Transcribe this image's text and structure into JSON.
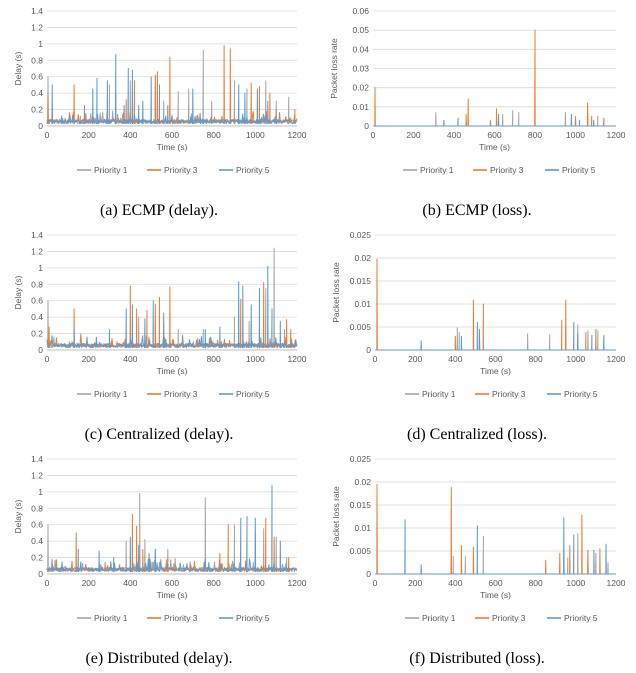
{
  "captions": [
    "(a) ECMP (delay).",
    "(b) ECMP (loss).",
    "(c) Centralized (delay).",
    "(d) Centralized (loss).",
    "(e) Distributed (delay).",
    "(f) Distributed (loss)."
  ],
  "colors": {
    "priority1": "#A5A5A5",
    "priority3": "#ED7D31",
    "priority5": "#5B9BD5",
    "grid": "#D9D9D9",
    "axis": "#BFBFBF"
  },
  "chart_data": [
    {
      "type": "line",
      "xlabel": "Time (s)",
      "ylabel": "Delay (s)",
      "xlim": [
        0,
        1200
      ],
      "ylim": [
        0,
        1.4
      ],
      "xticks": [
        "0",
        "200",
        "400",
        "600",
        "800",
        "1000",
        "1200"
      ],
      "yticks": [
        "0",
        "0.2",
        "0.4",
        "0.6",
        "0.8",
        "1",
        "1.2",
        "1.4"
      ],
      "grid": true,
      "legend": "bottom",
      "series": [
        {
          "name": "Priority 1",
          "color": "#A5A5A5",
          "spikes": [
            [
              5,
              0.6
            ],
            [
              160,
              0.12
            ],
            [
              300,
              0.5
            ],
            [
              330,
              0.4
            ],
            [
              400,
              0.55
            ],
            [
              520,
              0.48
            ],
            [
              560,
              0.3
            ],
            [
              630,
              0.42
            ],
            [
              680,
              0.45
            ],
            [
              750,
              0.92
            ],
            [
              790,
              0.3
            ],
            [
              900,
              0.55
            ],
            [
              960,
              0.45
            ],
            [
              1050,
              0.55
            ],
            [
              1100,
              0.3
            ],
            [
              1160,
              0.35
            ]
          ]
        },
        {
          "name": "Priority 3",
          "color": "#ED7D31",
          "spikes": [
            [
              5,
              0.38
            ],
            [
              130,
              0.5
            ],
            [
              380,
              0.32
            ],
            [
              420,
              0.55
            ],
            [
              520,
              0.62
            ],
            [
              530,
              0.66
            ],
            [
              590,
              0.84
            ],
            [
              850,
              0.98
            ],
            [
              880,
              0.94
            ],
            [
              980,
              0.52
            ],
            [
              1020,
              0.48
            ],
            [
              1070,
              0.4
            ],
            [
              1190,
              0.2
            ]
          ]
        },
        {
          "name": "Priority 5",
          "color": "#5B9BD5",
          "spikes": [
            [
              25,
              0.5
            ],
            [
              70,
              0.12
            ],
            [
              180,
              0.25
            ],
            [
              220,
              0.45
            ],
            [
              240,
              0.58
            ],
            [
              290,
              0.55
            ],
            [
              330,
              0.87
            ],
            [
              370,
              0.25
            ],
            [
              390,
              0.7
            ],
            [
              410,
              0.68
            ],
            [
              440,
              0.25
            ],
            [
              460,
              0.3
            ],
            [
              500,
              0.6
            ],
            [
              540,
              0.5
            ],
            [
              580,
              0.25
            ],
            [
              700,
              0.45
            ],
            [
              920,
              0.5
            ],
            [
              950,
              0.4
            ],
            [
              1010,
              0.45
            ],
            [
              1060,
              0.3
            ],
            [
              1100,
              0.2
            ]
          ]
        }
      ]
    },
    {
      "type": "line",
      "xlabel": "Time (s)",
      "ylabel": "Packet loss rate",
      "xlim": [
        0,
        1200
      ],
      "ylim": [
        0,
        0.06
      ],
      "xticks": [
        "0",
        "200",
        "400",
        "600",
        "800",
        "1000",
        "1200"
      ],
      "yticks": [
        "0",
        "0.01",
        "0.02",
        "0.03",
        "0.04",
        "0.05",
        "0.06"
      ],
      "grid": true,
      "legend": "bottom",
      "series": [
        {
          "name": "Priority 1",
          "color": "#A5A5A5",
          "spikes": [
            [
              310,
              0.007
            ],
            [
              640,
              0.006
            ],
            [
              690,
              0.008
            ],
            [
              720,
              0.007
            ],
            [
              950,
              0.007
            ],
            [
              1000,
              0.005
            ],
            [
              1110,
              0.005
            ],
            [
              1140,
              0.003
            ]
          ]
        },
        {
          "name": "Priority 3",
          "color": "#ED7D31",
          "spikes": [
            [
              10,
              0.02
            ],
            [
              460,
              0.006
            ],
            [
              470,
              0.014
            ],
            [
              580,
              0.003
            ],
            [
              610,
              0.009
            ],
            [
              800,
              0.05
            ],
            [
              1000,
              0.004
            ],
            [
              1060,
              0.012
            ],
            [
              1080,
              0.005
            ],
            [
              1140,
              0.004
            ]
          ]
        },
        {
          "name": "Priority 5",
          "color": "#5B9BD5",
          "spikes": [
            [
              350,
              0.003
            ],
            [
              420,
              0.004
            ],
            [
              620,
              0.006
            ],
            [
              980,
              0.006
            ],
            [
              1020,
              0.003
            ],
            [
              1090,
              0.003
            ]
          ]
        }
      ]
    },
    {
      "type": "line",
      "xlabel": "Time (s)",
      "ylabel": "Delay (s)",
      "xlim": [
        0,
        1200
      ],
      "ylim": [
        0,
        1.4
      ],
      "xticks": [
        "0",
        "200",
        "400",
        "600",
        "800",
        "1000",
        "1200"
      ],
      "yticks": [
        "0",
        "0.2",
        "0.4",
        "0.6",
        "0.8",
        "1",
        "1.2",
        "1.4"
      ],
      "grid": true,
      "legend": "bottom",
      "series": [
        {
          "name": "Priority 1",
          "color": "#A5A5A5",
          "spikes": [
            [
              5,
              0.6
            ],
            [
              440,
              0.4
            ],
            [
              520,
              0.35
            ],
            [
              560,
              0.3
            ],
            [
              630,
              0.25
            ],
            [
              750,
              0.25
            ],
            [
              900,
              0.4
            ],
            [
              970,
              0.35
            ],
            [
              1050,
              0.75
            ],
            [
              1090,
              1.24
            ],
            [
              1140,
              0.25
            ]
          ]
        },
        {
          "name": "Priority 3",
          "color": "#ED7D31",
          "spikes": [
            [
              10,
              0.28
            ],
            [
              130,
              0.5
            ],
            [
              400,
              0.78
            ],
            [
              430,
              0.5
            ],
            [
              480,
              0.48
            ],
            [
              520,
              0.56
            ],
            [
              540,
              0.64
            ],
            [
              590,
              0.77
            ],
            [
              930,
              0.62
            ],
            [
              1040,
              0.82
            ],
            [
              1150,
              0.37
            ],
            [
              1170,
              0.25
            ]
          ]
        },
        {
          "name": "Priority 5",
          "color": "#5B9BD5",
          "spikes": [
            [
              130,
              0.25
            ],
            [
              220,
              0.05
            ],
            [
              300,
              0.25
            ],
            [
              380,
              0.5
            ],
            [
              410,
              0.55
            ],
            [
              470,
              0.38
            ],
            [
              510,
              0.6
            ],
            [
              560,
              0.45
            ],
            [
              760,
              0.25
            ],
            [
              830,
              0.28
            ],
            [
              920,
              0.83
            ],
            [
              940,
              0.78
            ],
            [
              980,
              0.55
            ],
            [
              1020,
              0.75
            ],
            [
              1060,
              1.02
            ],
            [
              1080,
              0.5
            ],
            [
              1120,
              0.35
            ]
          ]
        }
      ]
    },
    {
      "type": "line",
      "xlabel": "Time (s)",
      "ylabel": "Packet loss rate",
      "xlim": [
        0,
        1200
      ],
      "ylim": [
        0,
        0.025
      ],
      "xticks": [
        "0",
        "200",
        "400",
        "600",
        "800",
        "1000",
        "1200"
      ],
      "yticks": [
        "0",
        "0.005",
        "0.01",
        "0.015",
        "0.02",
        "0.025"
      ],
      "grid": true,
      "legend": "bottom",
      "series": [
        {
          "name": "Priority 1",
          "color": "#A5A5A5",
          "spikes": [
            [
              410,
              0.0048
            ],
            [
              420,
              0.0038
            ],
            [
              520,
              0.0035
            ],
            [
              760,
              0.0035
            ],
            [
              870,
              0.0033
            ],
            [
              950,
              0.005
            ],
            [
              1010,
              0.0055
            ],
            [
              1060,
              0.0042
            ],
            [
              1110,
              0.0042
            ],
            [
              1140,
              0.0032
            ]
          ]
        },
        {
          "name": "Priority 3",
          "color": "#ED7D31",
          "spikes": [
            [
              10,
              0.0197
            ],
            [
              400,
              0.003
            ],
            [
              490,
              0.0108
            ],
            [
              540,
              0.01
            ],
            [
              930,
              0.0065
            ],
            [
              950,
              0.0108
            ],
            [
              1050,
              0.0038
            ],
            [
              1100,
              0.0045
            ]
          ]
        },
        {
          "name": "Priority 5",
          "color": "#5B9BD5",
          "spikes": [
            [
              230,
              0.002
            ],
            [
              430,
              0.003
            ],
            [
              510,
              0.006
            ],
            [
              520,
              0.0045
            ],
            [
              990,
              0.006
            ],
            [
              1010,
              0.0035
            ],
            [
              1080,
              0.0032
            ],
            [
              1140,
              0.003
            ]
          ]
        }
      ]
    },
    {
      "type": "line",
      "xlabel": "Time (s)",
      "ylabel": "Delay (s)",
      "xlim": [
        0,
        1200
      ],
      "ylim": [
        0,
        1.4
      ],
      "xticks": [
        "0",
        "200",
        "400",
        "600",
        "800",
        "1000",
        "1200"
      ],
      "yticks": [
        "0",
        "0.2",
        "0.4",
        "0.6",
        "0.8",
        "1",
        "1.2",
        "1.4"
      ],
      "grid": true,
      "legend": "bottom",
      "series": [
        {
          "name": "Priority 1",
          "color": "#A5A5A5",
          "spikes": [
            [
              5,
              0.6
            ],
            [
              380,
              0.4
            ],
            [
              445,
              0.98
            ],
            [
              470,
              0.42
            ],
            [
              520,
              0.3
            ],
            [
              580,
              0.3
            ],
            [
              760,
              0.93
            ],
            [
              900,
              0.6
            ],
            [
              960,
              0.5
            ],
            [
              1000,
              0.5
            ],
            [
              1040,
              0.55
            ],
            [
              1100,
              0.45
            ],
            [
              1150,
              0.2
            ]
          ]
        },
        {
          "name": "Priority 3",
          "color": "#ED7D31",
          "spikes": [
            [
              140,
              0.5
            ],
            [
              410,
              0.73
            ],
            [
              430,
              0.58
            ],
            [
              460,
              0.3
            ],
            [
              580,
              0.2
            ],
            [
              830,
              0.25
            ],
            [
              870,
              0.6
            ],
            [
              1050,
              0.68
            ],
            [
              1090,
              0.45
            ],
            [
              1160,
              0.2
            ]
          ]
        },
        {
          "name": "Priority 5",
          "color": "#5B9BD5",
          "spikes": [
            [
              60,
              0.05
            ],
            [
              150,
              0.3
            ],
            [
              220,
              0.05
            ],
            [
              250,
              0.28
            ],
            [
              320,
              0.2
            ],
            [
              400,
              0.45
            ],
            [
              440,
              0.35
            ],
            [
              490,
              0.25
            ],
            [
              520,
              0.3
            ],
            [
              930,
              0.68
            ],
            [
              960,
              0.7
            ],
            [
              1000,
              0.68
            ],
            [
              1080,
              1.08
            ],
            [
              1120,
              0.4
            ]
          ]
        }
      ]
    },
    {
      "type": "line",
      "xlabel": "Time (s)",
      "ylabel": "Packet loss rate",
      "xlim": [
        0,
        1200
      ],
      "ylim": [
        0,
        0.025
      ],
      "xticks": [
        "0",
        "200",
        "400",
        "600",
        "800",
        "1000",
        "1200"
      ],
      "yticks": [
        "0",
        "0.005",
        "0.01",
        "0.015",
        "0.02",
        "0.025"
      ],
      "grid": true,
      "legend": "bottom",
      "series": [
        {
          "name": "Priority 1",
          "color": "#A5A5A5",
          "spikes": [
            [
              390,
              0.0038
            ],
            [
              450,
              0.0038
            ],
            [
              540,
              0.0082
            ],
            [
              940,
              0.005
            ],
            [
              960,
              0.0035
            ],
            [
              1010,
              0.0088
            ],
            [
              1060,
              0.005
            ],
            [
              1100,
              0.0045
            ],
            [
              1160,
              0.0025
            ]
          ]
        },
        {
          "name": "Priority 3",
          "color": "#ED7D31",
          "spikes": [
            [
              10,
              0.0195
            ],
            [
              380,
              0.0188
            ],
            [
              430,
              0.0062
            ],
            [
              490,
              0.0058
            ],
            [
              850,
              0.003
            ],
            [
              920,
              0.0045
            ],
            [
              970,
              0.0062
            ],
            [
              1030,
              0.0128
            ],
            [
              1060,
              0.0052
            ],
            [
              1120,
              0.0055
            ]
          ]
        },
        {
          "name": "Priority 5",
          "color": "#5B9BD5",
          "spikes": [
            [
              150,
              0.0118
            ],
            [
              230,
              0.002
            ],
            [
              510,
              0.0105
            ],
            [
              940,
              0.0122
            ],
            [
              990,
              0.0085
            ],
            [
              1090,
              0.0052
            ],
            [
              1150,
              0.0065
            ]
          ]
        }
      ]
    }
  ]
}
